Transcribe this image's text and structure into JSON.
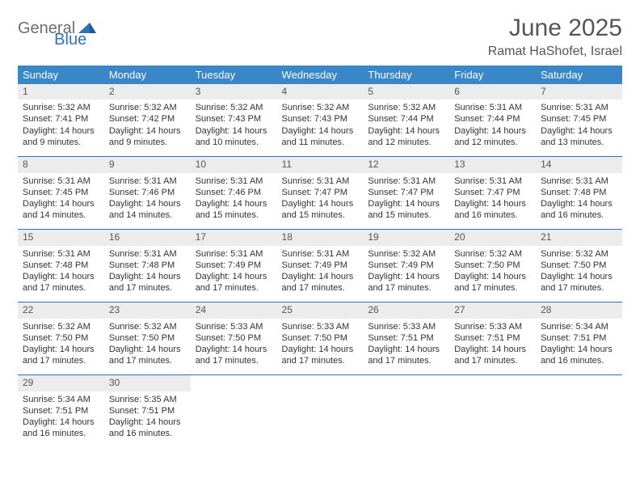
{
  "brand": {
    "part1": "General",
    "part2": "Blue",
    "mark_color": "#2f72b8",
    "text_gray": "#6e6e6e"
  },
  "title": "June 2025",
  "location": "Ramat HaShofet, Israel",
  "colors": {
    "header_bg": "#3a87c8",
    "header_text": "#ffffff",
    "daynum_bg": "#ececec",
    "border": "#2f72b8",
    "body_text": "#333333",
    "title_text": "#555555"
  },
  "weekdays": [
    "Sunday",
    "Monday",
    "Tuesday",
    "Wednesday",
    "Thursday",
    "Friday",
    "Saturday"
  ],
  "weeks": [
    [
      {
        "n": "1",
        "sr": "Sunrise: 5:32 AM",
        "ss": "Sunset: 7:41 PM",
        "dl": "Daylight: 14 hours and 9 minutes."
      },
      {
        "n": "2",
        "sr": "Sunrise: 5:32 AM",
        "ss": "Sunset: 7:42 PM",
        "dl": "Daylight: 14 hours and 9 minutes."
      },
      {
        "n": "3",
        "sr": "Sunrise: 5:32 AM",
        "ss": "Sunset: 7:43 PM",
        "dl": "Daylight: 14 hours and 10 minutes."
      },
      {
        "n": "4",
        "sr": "Sunrise: 5:32 AM",
        "ss": "Sunset: 7:43 PM",
        "dl": "Daylight: 14 hours and 11 minutes."
      },
      {
        "n": "5",
        "sr": "Sunrise: 5:32 AM",
        "ss": "Sunset: 7:44 PM",
        "dl": "Daylight: 14 hours and 12 minutes."
      },
      {
        "n": "6",
        "sr": "Sunrise: 5:31 AM",
        "ss": "Sunset: 7:44 PM",
        "dl": "Daylight: 14 hours and 12 minutes."
      },
      {
        "n": "7",
        "sr": "Sunrise: 5:31 AM",
        "ss": "Sunset: 7:45 PM",
        "dl": "Daylight: 14 hours and 13 minutes."
      }
    ],
    [
      {
        "n": "8",
        "sr": "Sunrise: 5:31 AM",
        "ss": "Sunset: 7:45 PM",
        "dl": "Daylight: 14 hours and 14 minutes."
      },
      {
        "n": "9",
        "sr": "Sunrise: 5:31 AM",
        "ss": "Sunset: 7:46 PM",
        "dl": "Daylight: 14 hours and 14 minutes."
      },
      {
        "n": "10",
        "sr": "Sunrise: 5:31 AM",
        "ss": "Sunset: 7:46 PM",
        "dl": "Daylight: 14 hours and 15 minutes."
      },
      {
        "n": "11",
        "sr": "Sunrise: 5:31 AM",
        "ss": "Sunset: 7:47 PM",
        "dl": "Daylight: 14 hours and 15 minutes."
      },
      {
        "n": "12",
        "sr": "Sunrise: 5:31 AM",
        "ss": "Sunset: 7:47 PM",
        "dl": "Daylight: 14 hours and 15 minutes."
      },
      {
        "n": "13",
        "sr": "Sunrise: 5:31 AM",
        "ss": "Sunset: 7:47 PM",
        "dl": "Daylight: 14 hours and 16 minutes."
      },
      {
        "n": "14",
        "sr": "Sunrise: 5:31 AM",
        "ss": "Sunset: 7:48 PM",
        "dl": "Daylight: 14 hours and 16 minutes."
      }
    ],
    [
      {
        "n": "15",
        "sr": "Sunrise: 5:31 AM",
        "ss": "Sunset: 7:48 PM",
        "dl": "Daylight: 14 hours and 17 minutes."
      },
      {
        "n": "16",
        "sr": "Sunrise: 5:31 AM",
        "ss": "Sunset: 7:48 PM",
        "dl": "Daylight: 14 hours and 17 minutes."
      },
      {
        "n": "17",
        "sr": "Sunrise: 5:31 AM",
        "ss": "Sunset: 7:49 PM",
        "dl": "Daylight: 14 hours and 17 minutes."
      },
      {
        "n": "18",
        "sr": "Sunrise: 5:31 AM",
        "ss": "Sunset: 7:49 PM",
        "dl": "Daylight: 14 hours and 17 minutes."
      },
      {
        "n": "19",
        "sr": "Sunrise: 5:32 AM",
        "ss": "Sunset: 7:49 PM",
        "dl": "Daylight: 14 hours and 17 minutes."
      },
      {
        "n": "20",
        "sr": "Sunrise: 5:32 AM",
        "ss": "Sunset: 7:50 PM",
        "dl": "Daylight: 14 hours and 17 minutes."
      },
      {
        "n": "21",
        "sr": "Sunrise: 5:32 AM",
        "ss": "Sunset: 7:50 PM",
        "dl": "Daylight: 14 hours and 17 minutes."
      }
    ],
    [
      {
        "n": "22",
        "sr": "Sunrise: 5:32 AM",
        "ss": "Sunset: 7:50 PM",
        "dl": "Daylight: 14 hours and 17 minutes."
      },
      {
        "n": "23",
        "sr": "Sunrise: 5:32 AM",
        "ss": "Sunset: 7:50 PM",
        "dl": "Daylight: 14 hours and 17 minutes."
      },
      {
        "n": "24",
        "sr": "Sunrise: 5:33 AM",
        "ss": "Sunset: 7:50 PM",
        "dl": "Daylight: 14 hours and 17 minutes."
      },
      {
        "n": "25",
        "sr": "Sunrise: 5:33 AM",
        "ss": "Sunset: 7:50 PM",
        "dl": "Daylight: 14 hours and 17 minutes."
      },
      {
        "n": "26",
        "sr": "Sunrise: 5:33 AM",
        "ss": "Sunset: 7:51 PM",
        "dl": "Daylight: 14 hours and 17 minutes."
      },
      {
        "n": "27",
        "sr": "Sunrise: 5:33 AM",
        "ss": "Sunset: 7:51 PM",
        "dl": "Daylight: 14 hours and 17 minutes."
      },
      {
        "n": "28",
        "sr": "Sunrise: 5:34 AM",
        "ss": "Sunset: 7:51 PM",
        "dl": "Daylight: 14 hours and 16 minutes."
      }
    ],
    [
      {
        "n": "29",
        "sr": "Sunrise: 5:34 AM",
        "ss": "Sunset: 7:51 PM",
        "dl": "Daylight: 14 hours and 16 minutes."
      },
      {
        "n": "30",
        "sr": "Sunrise: 5:35 AM",
        "ss": "Sunset: 7:51 PM",
        "dl": "Daylight: 14 hours and 16 minutes."
      },
      null,
      null,
      null,
      null,
      null
    ]
  ]
}
